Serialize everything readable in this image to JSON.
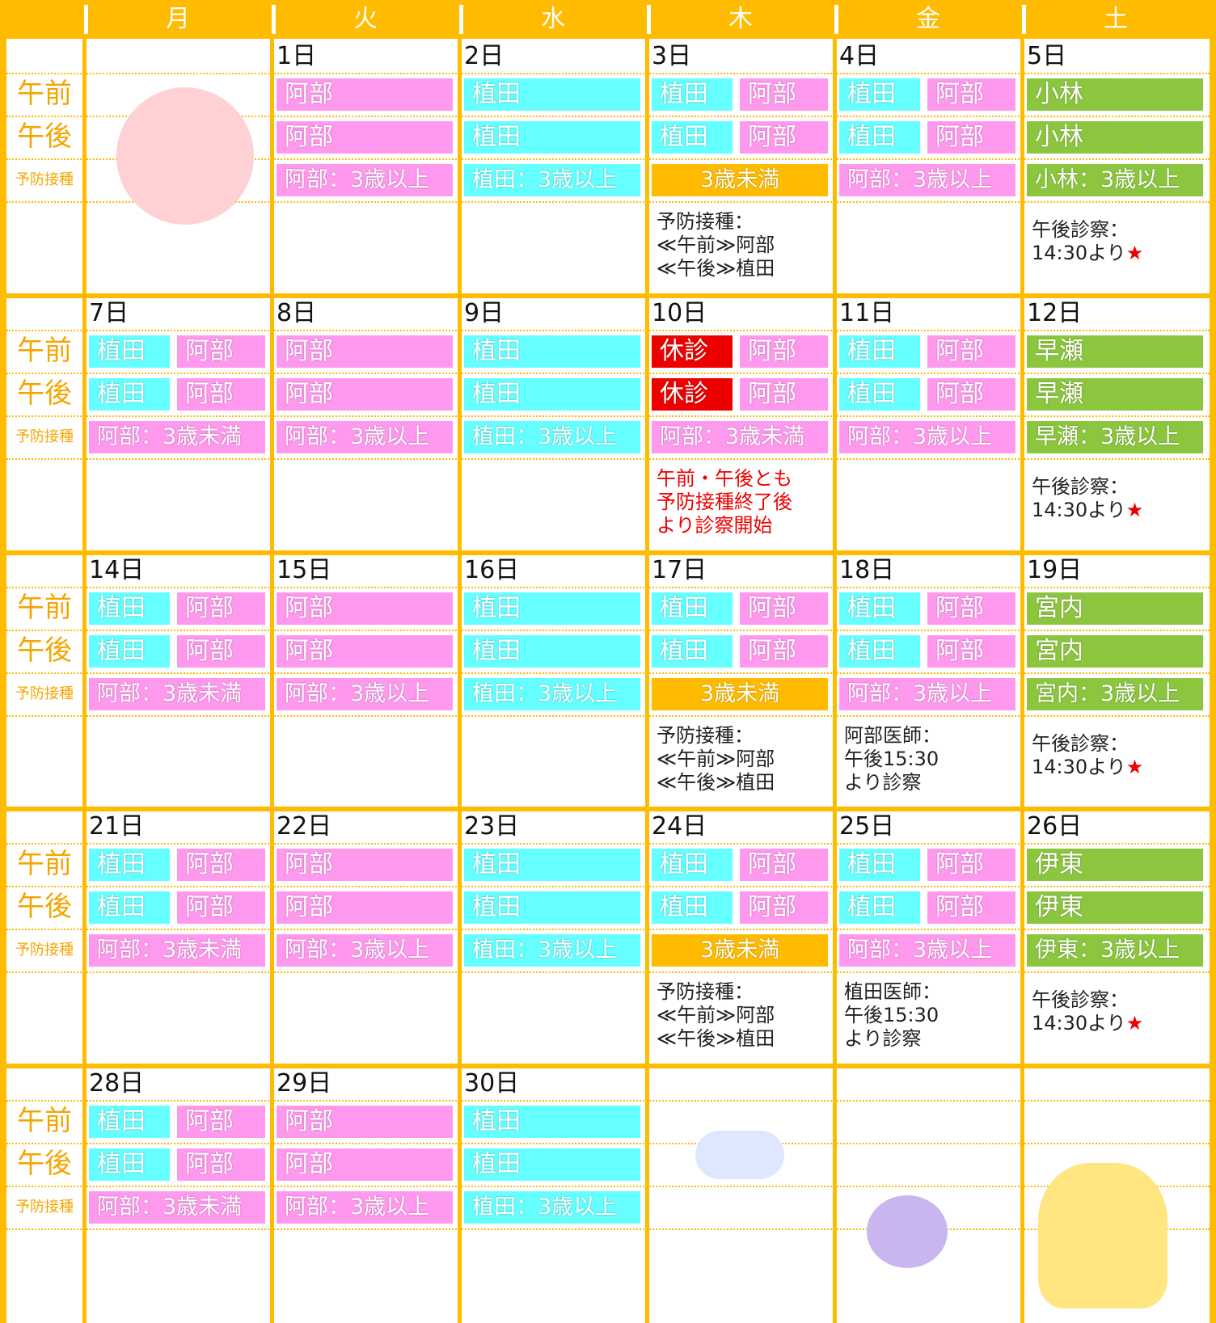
{
  "header": {
    "days": [
      "月",
      "火",
      "水",
      "木",
      "金",
      "土"
    ]
  },
  "row_labels": [
    "午前",
    "午後",
    "予防接種"
  ],
  "weeks": [
    [
      null,
      {
        "date": "1日",
        "am": [
          {
            "text": "阿部",
            "color": "#ff99ee"
          }
        ],
        "pm": [
          {
            "text": "阿部",
            "color": "#ff99ee"
          }
        ],
        "vac": [
          {
            "text": "阿部：3歳以上",
            "color": "#ff99ee"
          }
        ]
      },
      {
        "date": "2日",
        "am": [
          {
            "text": "植田",
            "color": "#66ffff"
          }
        ],
        "pm": [
          {
            "text": "植田",
            "color": "#66ffff"
          }
        ],
        "vac": [
          {
            "text": "植田：3歳以上",
            "color": "#66ffff"
          }
        ]
      },
      {
        "date": "3日",
        "am": [
          {
            "text": "植田",
            "color": "#66ffff"
          },
          {
            "text": "阿部",
            "color": "#ff99ee"
          }
        ],
        "pm": [
          {
            "text": "植田",
            "color": "#66ffff"
          },
          {
            "text": "阿部",
            "color": "#ff99ee"
          }
        ],
        "vac": [
          {
            "text": "3歳未満",
            "color": "#ffbb00"
          }
        ],
        "note": {
          "lines": [
            "予防接種：",
            "≪午前≫阿部",
            "≪午後≫植田"
          ]
        }
      },
      {
        "date": "4日",
        "am": [
          {
            "text": "植田",
            "color": "#66ffff"
          },
          {
            "text": "阿部",
            "color": "#ff99ee"
          }
        ],
        "pm": [
          {
            "text": "植田",
            "color": "#66ffff"
          },
          {
            "text": "阿部",
            "color": "#ff99ee"
          }
        ],
        "vac": [
          {
            "text": "阿部：3歳以上",
            "color": "#ff99ee"
          }
        ]
      },
      {
        "date": "5日",
        "am": [
          {
            "text": "小林",
            "color": "#8cc63f"
          }
        ],
        "pm": [
          {
            "text": "小林",
            "color": "#8cc63f"
          }
        ],
        "vac": [
          {
            "text": "小林：3歳以上",
            "color": "#8cc63f"
          }
        ],
        "note": {
          "lines": [
            "午後診察：",
            "14:30より"
          ],
          "star": "★"
        }
      }
    ],
    [
      {
        "date": "7日",
        "am": [
          {
            "text": "植田",
            "color": "#66ffff"
          },
          {
            "text": "阿部",
            "color": "#ff99ee"
          }
        ],
        "pm": [
          {
            "text": "植田",
            "color": "#66ffff"
          },
          {
            "text": "阿部",
            "color": "#ff99ee"
          }
        ],
        "vac": [
          {
            "text": "阿部：3歳未満",
            "color": "#ff99ee"
          }
        ]
      },
      {
        "date": "8日",
        "am": [
          {
            "text": "阿部",
            "color": "#ff99ee"
          }
        ],
        "pm": [
          {
            "text": "阿部",
            "color": "#ff99ee"
          }
        ],
        "vac": [
          {
            "text": "阿部：3歳以上",
            "color": "#ff99ee"
          }
        ]
      },
      {
        "date": "9日",
        "am": [
          {
            "text": "植田",
            "color": "#66ffff"
          }
        ],
        "pm": [
          {
            "text": "植田",
            "color": "#66ffff"
          }
        ],
        "vac": [
          {
            "text": "植田：3歳以上",
            "color": "#66ffff"
          }
        ]
      },
      {
        "date": "10日",
        "am": [
          {
            "text": "休診",
            "color": "#ee0000"
          },
          {
            "text": "阿部",
            "color": "#ff99ee"
          }
        ],
        "pm": [
          {
            "text": "休診",
            "color": "#ee0000"
          },
          {
            "text": "阿部",
            "color": "#ff99ee"
          }
        ],
        "vac": [
          {
            "text": "阿部：3歳未満",
            "color": "#ff99ee"
          }
        ],
        "note": {
          "lines": [
            "午前・午後とも",
            "予防接種終了後",
            "より診察開始"
          ],
          "color": "#ee0000"
        }
      },
      {
        "date": "11日",
        "am": [
          {
            "text": "植田",
            "color": "#66ffff"
          },
          {
            "text": "阿部",
            "color": "#ff99ee"
          }
        ],
        "pm": [
          {
            "text": "植田",
            "color": "#66ffff"
          },
          {
            "text": "阿部",
            "color": "#ff99ee"
          }
        ],
        "vac": [
          {
            "text": "阿部：3歳以上",
            "color": "#ff99ee"
          }
        ]
      },
      {
        "date": "12日",
        "am": [
          {
            "text": "早瀬",
            "color": "#8cc63f"
          }
        ],
        "pm": [
          {
            "text": "早瀬",
            "color": "#8cc63f"
          }
        ],
        "vac": [
          {
            "text": "早瀬：3歳以上",
            "color": "#8cc63f"
          }
        ],
        "note": {
          "lines": [
            "午後診察：",
            "14:30より"
          ],
          "star": "★"
        }
      }
    ],
    [
      {
        "date": "14日",
        "am": [
          {
            "text": "植田",
            "color": "#66ffff"
          },
          {
            "text": "阿部",
            "color": "#ff99ee"
          }
        ],
        "pm": [
          {
            "text": "植田",
            "color": "#66ffff"
          },
          {
            "text": "阿部",
            "color": "#ff99ee"
          }
        ],
        "vac": [
          {
            "text": "阿部：3歳未満",
            "color": "#ff99ee"
          }
        ]
      },
      {
        "date": "15日",
        "am": [
          {
            "text": "阿部",
            "color": "#ff99ee"
          }
        ],
        "pm": [
          {
            "text": "阿部",
            "color": "#ff99ee"
          }
        ],
        "vac": [
          {
            "text": "阿部：3歳以上",
            "color": "#ff99ee"
          }
        ]
      },
      {
        "date": "16日",
        "am": [
          {
            "text": "植田",
            "color": "#66ffff"
          }
        ],
        "pm": [
          {
            "text": "植田",
            "color": "#66ffff"
          }
        ],
        "vac": [
          {
            "text": "植田：3歳以上",
            "color": "#66ffff"
          }
        ]
      },
      {
        "date": "17日",
        "am": [
          {
            "text": "植田",
            "color": "#66ffff"
          },
          {
            "text": "阿部",
            "color": "#ff99ee"
          }
        ],
        "pm": [
          {
            "text": "植田",
            "color": "#66ffff"
          },
          {
            "text": "阿部",
            "color": "#ff99ee"
          }
        ],
        "vac": [
          {
            "text": "3歳未満",
            "color": "#ffbb00"
          }
        ],
        "note": {
          "lines": [
            "予防接種：",
            "≪午前≫阿部",
            "≪午後≫植田"
          ]
        }
      },
      {
        "date": "18日",
        "am": [
          {
            "text": "植田",
            "color": "#66ffff"
          },
          {
            "text": "阿部",
            "color": "#ff99ee"
          }
        ],
        "pm": [
          {
            "text": "植田",
            "color": "#66ffff"
          },
          {
            "text": "阿部",
            "color": "#ff99ee"
          }
        ],
        "vac": [
          {
            "text": "阿部：3歳以上",
            "color": "#ff99ee"
          }
        ],
        "note": {
          "lines": [
            "阿部医師：",
            "午後15:30",
            "より診察"
          ]
        }
      },
      {
        "date": "19日",
        "am": [
          {
            "text": "宮内",
            "color": "#8cc63f"
          }
        ],
        "pm": [
          {
            "text": "宮内",
            "color": "#8cc63f"
          }
        ],
        "vac": [
          {
            "text": "宮内：3歳以上",
            "color": "#8cc63f"
          }
        ],
        "note": {
          "lines": [
            "午後診察：",
            "14:30より"
          ],
          "star": "★"
        }
      }
    ],
    [
      {
        "date": "21日",
        "am": [
          {
            "text": "植田",
            "color": "#66ffff"
          },
          {
            "text": "阿部",
            "color": "#ff99ee"
          }
        ],
        "pm": [
          {
            "text": "植田",
            "color": "#66ffff"
          },
          {
            "text": "阿部",
            "color": "#ff99ee"
          }
        ],
        "vac": [
          {
            "text": "阿部：3歳未満",
            "color": "#ff99ee"
          }
        ]
      },
      {
        "date": "22日",
        "am": [
          {
            "text": "阿部",
            "color": "#ff99ee"
          }
        ],
        "pm": [
          {
            "text": "阿部",
            "color": "#ff99ee"
          }
        ],
        "vac": [
          {
            "text": "阿部：3歳以上",
            "color": "#ff99ee"
          }
        ]
      },
      {
        "date": "23日",
        "am": [
          {
            "text": "植田",
            "color": "#66ffff"
          }
        ],
        "pm": [
          {
            "text": "植田",
            "color": "#66ffff"
          }
        ],
        "vac": [
          {
            "text": "植田：3歳以上",
            "color": "#66ffff"
          }
        ]
      },
      {
        "date": "24日",
        "am": [
          {
            "text": "植田",
            "color": "#66ffff"
          },
          {
            "text": "阿部",
            "color": "#ff99ee"
          }
        ],
        "pm": [
          {
            "text": "植田",
            "color": "#66ffff"
          },
          {
            "text": "阿部",
            "color": "#ff99ee"
          }
        ],
        "vac": [
          {
            "text": "3歳未満",
            "color": "#ffbb00"
          }
        ],
        "note": {
          "lines": [
            "予防接種：",
            "≪午前≫阿部",
            "≪午後≫植田"
          ]
        }
      },
      {
        "date": "25日",
        "am": [
          {
            "text": "植田",
            "color": "#66ffff"
          },
          {
            "text": "阿部",
            "color": "#ff99ee"
          }
        ],
        "pm": [
          {
            "text": "植田",
            "color": "#66ffff"
          },
          {
            "text": "阿部",
            "color": "#ff99ee"
          }
        ],
        "vac": [
          {
            "text": "阿部：3歳以上",
            "color": "#ff99ee"
          }
        ],
        "note": {
          "lines": [
            "植田医師：",
            "午後15:30",
            "より診察"
          ]
        }
      },
      {
        "date": "26日",
        "am": [
          {
            "text": "伊東",
            "color": "#8cc63f"
          }
        ],
        "pm": [
          {
            "text": "伊東",
            "color": "#8cc63f"
          }
        ],
        "vac": [
          {
            "text": "伊東：3歳以上",
            "color": "#8cc63f"
          }
        ],
        "note": {
          "lines": [
            "午後診察：",
            "14:30より"
          ],
          "star": "★"
        }
      }
    ],
    [
      {
        "date": "28日",
        "am": [
          {
            "text": "植田",
            "color": "#66ffff"
          },
          {
            "text": "阿部",
            "color": "#ff99ee"
          }
        ],
        "pm": [
          {
            "text": "植田",
            "color": "#66ffff"
          },
          {
            "text": "阿部",
            "color": "#ff99ee"
          }
        ],
        "vac": [
          {
            "text": "阿部：3歳未満",
            "color": "#ff99ee"
          }
        ]
      },
      {
        "date": "29日",
        "am": [
          {
            "text": "阿部",
            "color": "#ff99ee"
          }
        ],
        "pm": [
          {
            "text": "阿部",
            "color": "#ff99ee"
          }
        ],
        "vac": [
          {
            "text": "阿部：3歳以上",
            "color": "#ff99ee"
          }
        ]
      },
      {
        "date": "30日",
        "am": [
          {
            "text": "植田",
            "color": "#66ffff"
          }
        ],
        "pm": [
          {
            "text": "植田",
            "color": "#66ffff"
          }
        ],
        "vac": [
          {
            "text": "植田：3歳以上",
            "color": "#66ffff"
          }
        ]
      },
      null,
      null,
      null
    ]
  ]
}
